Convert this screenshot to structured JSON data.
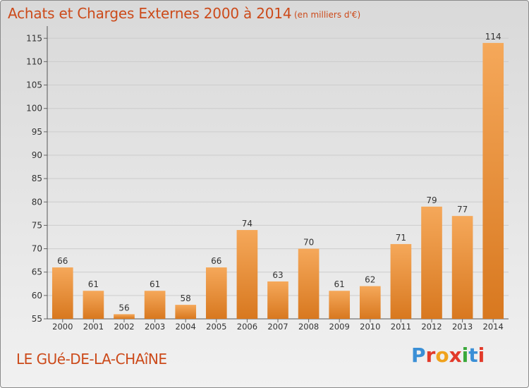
{
  "header": {
    "title": "Achats et Charges Externes 2000 à 2014",
    "subtitle": "(en milliers d'€)"
  },
  "footer": {
    "commune": "LE GUé-DE-LA-CHAîNE",
    "logo": {
      "letters": [
        "P",
        "r",
        "o",
        "x",
        "i",
        "t",
        "i"
      ],
      "colors": [
        "#3a8fd6",
        "#e23a2a",
        "#f0a21c",
        "#e23a2a",
        "#3aa83a",
        "#3a8fd6",
        "#e23a2a"
      ]
    }
  },
  "chart_data": {
    "type": "bar",
    "categories": [
      "2000",
      "2001",
      "2002",
      "2003",
      "2004",
      "2005",
      "2006",
      "2007",
      "2008",
      "2009",
      "2010",
      "2011",
      "2012",
      "2013",
      "2014"
    ],
    "values": [
      66,
      61,
      56,
      61,
      58,
      66,
      74,
      63,
      70,
      61,
      62,
      71,
      79,
      77,
      114
    ],
    "data_labels": [
      "66",
      "61",
      "56",
      "61",
      "58",
      "66",
      "74",
      "63",
      "70",
      "61",
      "62",
      "71",
      "79",
      "77",
      "114"
    ],
    "yticks": [
      55,
      60,
      65,
      70,
      75,
      80,
      85,
      90,
      95,
      100,
      105,
      110,
      115
    ],
    "ylim": [
      55,
      117
    ],
    "grid": true,
    "colors": {
      "bar_top": "#f5a85a",
      "bar_bottom": "#d8781f",
      "grid": "#cccccc"
    }
  }
}
